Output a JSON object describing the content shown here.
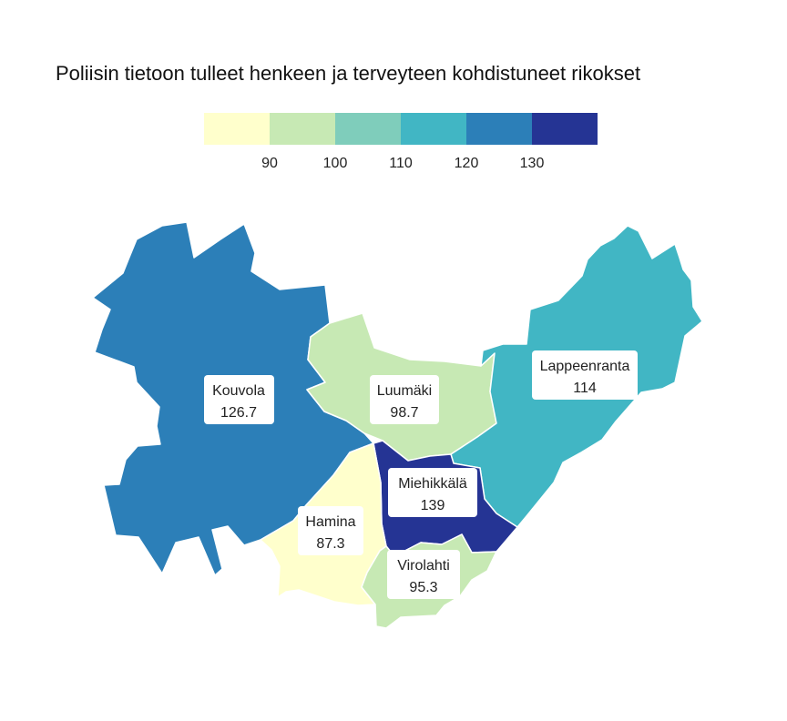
{
  "title": "Poliisin tietoon tulleet henkeen ja terveyteen kohdistuneet rikokset",
  "legend": {
    "colors": [
      "#ffffcc",
      "#c7e9b4",
      "#7fcdbb",
      "#41b6c4",
      "#2c7fb8",
      "#253494"
    ],
    "ticks": [
      "90",
      "100",
      "110",
      "120",
      "130"
    ]
  },
  "chart_data": {
    "type": "choropleth",
    "title": "Poliisin tietoon tulleet henkeen ja terveyteen kohdistuneet rikokset",
    "color_breaks": [
      90,
      100,
      110,
      120,
      130
    ],
    "regions": [
      {
        "name": "Kouvola",
        "value": "126.7",
        "color": "#2c7fb8"
      },
      {
        "name": "Luumäki",
        "value": "98.7",
        "color": "#c7e9b4"
      },
      {
        "name": "Lappeenranta",
        "value": "114",
        "color": "#41b6c4"
      },
      {
        "name": "Miehikkälä",
        "value": "139",
        "color": "#253494"
      },
      {
        "name": "Hamina",
        "value": "87.3",
        "color": "#ffffcc"
      },
      {
        "name": "Virolahti",
        "value": "95.3",
        "color": "#c7e9b4"
      }
    ]
  }
}
